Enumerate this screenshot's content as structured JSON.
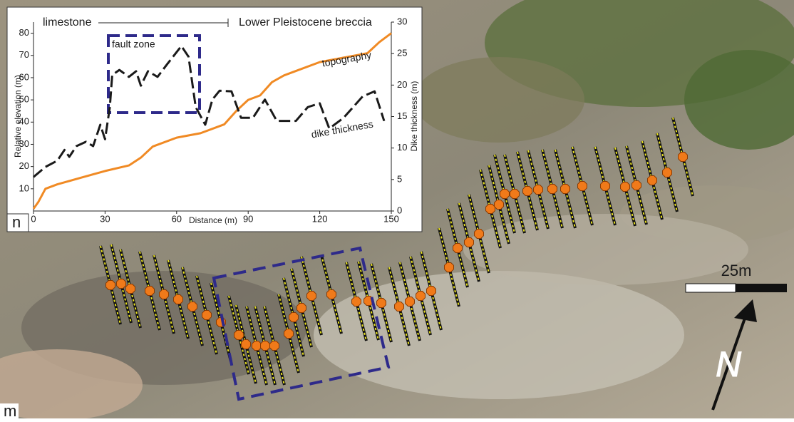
{
  "chart_data": {
    "type": "line",
    "x_label": "Distance (m)",
    "y_label": "Relative elevation (m)",
    "y2_label": "Dike thickness (m)",
    "strata": [
      "limestone",
      "Lower Pleistocene breccia"
    ],
    "fault_zone_label": "fault zone",
    "panel_labels": [
      "n",
      "m"
    ],
    "scale_label": "25m",
    "north_label": "N",
    "xlim": [
      0,
      150
    ],
    "xticks": [
      0,
      30,
      60,
      90,
      120,
      150
    ],
    "ylim": [
      0,
      85
    ],
    "yticks": [
      10,
      20,
      30,
      40,
      50,
      60,
      70,
      80
    ],
    "y2lim": [
      0,
      30
    ],
    "y2ticks": [
      0,
      5,
      10,
      15,
      20,
      25,
      30
    ],
    "series": [
      {
        "name": "topography",
        "color": "#f08a24",
        "axis": "y",
        "x": [
          0,
          2,
          5,
          10,
          20,
          30,
          40,
          45,
          50,
          60,
          70,
          80,
          85,
          90,
          95,
          100,
          105,
          110,
          120,
          130,
          140,
          145,
          150
        ],
        "values": [
          1,
          4,
          10,
          12,
          15,
          18,
          20.5,
          24,
          29,
          33,
          35,
          39,
          45,
          50,
          52,
          58,
          61,
          63,
          67,
          69,
          71,
          76,
          80
        ]
      },
      {
        "name": "dike thickness",
        "color": "#1a1a1a",
        "axis": "y2",
        "x": [
          0,
          5,
          10,
          13,
          15,
          18,
          22,
          25,
          28,
          30,
          32,
          33,
          36,
          40,
          43,
          45,
          48,
          52,
          56,
          62,
          65,
          68,
          72,
          75,
          78,
          83,
          87,
          92,
          97,
          102,
          110,
          115,
          120,
          124,
          130,
          138,
          143,
          147
        ],
        "values": [
          5.4,
          7,
          8,
          9.7,
          8.6,
          10.3,
          11,
          10.3,
          13.7,
          11.4,
          16.5,
          21.6,
          22.4,
          21.3,
          22.2,
          19.9,
          22.2,
          21.3,
          23.3,
          26.2,
          24.5,
          16.5,
          13.7,
          17.7,
          19.1,
          19,
          14.8,
          14.8,
          17.7,
          14.3,
          14.3,
          16.5,
          17.1,
          13.1,
          14.8,
          18.2,
          19,
          14.3
        ]
      }
    ]
  }
}
